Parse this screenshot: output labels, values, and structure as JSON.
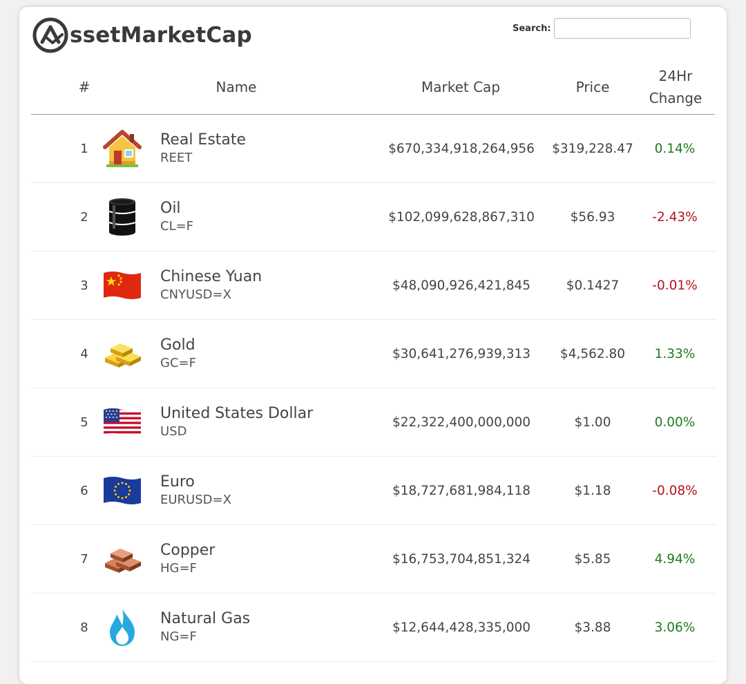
{
  "header": {
    "logo_text": "ssetMarketCap",
    "search_label": "Search:",
    "search_value": ""
  },
  "columns": {
    "rank": "#",
    "name": "Name",
    "market_cap": "Market Cap",
    "price": "Price",
    "change_line1": "24Hr",
    "change_line2": "Change"
  },
  "colors": {
    "positive": "#1f7a1f",
    "negative": "#b5121b"
  },
  "assets": [
    {
      "rank": "1",
      "name": "Real Estate",
      "symbol": "REET",
      "market_cap": "$670,334,918,264,956",
      "price": "$319,228.47",
      "change": "0.14%",
      "direction": "positive",
      "icon": "house-icon"
    },
    {
      "rank": "2",
      "name": "Oil",
      "symbol": "CL=F",
      "market_cap": "$102,099,628,867,310",
      "price": "$56.93",
      "change": "-2.43%",
      "direction": "negative",
      "icon": "oil-barrel-icon"
    },
    {
      "rank": "3",
      "name": "Chinese Yuan",
      "symbol": "CNYUSD=X",
      "market_cap": "$48,090,926,421,845",
      "price": "$0.1427",
      "change": "-0.01%",
      "direction": "negative",
      "icon": "china-flag-icon"
    },
    {
      "rank": "4",
      "name": "Gold",
      "symbol": "GC=F",
      "market_cap": "$30,641,276,939,313",
      "price": "$4,562.80",
      "change": "1.33%",
      "direction": "positive",
      "icon": "gold-bars-icon"
    },
    {
      "rank": "5",
      "name": "United States Dollar",
      "symbol": "USD",
      "market_cap": "$22,322,400,000,000",
      "price": "$1.00",
      "change": "0.00%",
      "direction": "positive",
      "icon": "us-flag-icon"
    },
    {
      "rank": "6",
      "name": "Euro",
      "symbol": "EURUSD=X",
      "market_cap": "$18,727,681,984,118",
      "price": "$1.18",
      "change": "-0.08%",
      "direction": "negative",
      "icon": "eu-flag-icon"
    },
    {
      "rank": "7",
      "name": "Copper",
      "symbol": "HG=F",
      "market_cap": "$16,753,704,851,324",
      "price": "$5.85",
      "change": "4.94%",
      "direction": "positive",
      "icon": "copper-bars-icon"
    },
    {
      "rank": "8",
      "name": "Natural Gas",
      "symbol": "NG=F",
      "market_cap": "$12,644,428,335,000",
      "price": "$3.88",
      "change": "3.06%",
      "direction": "positive",
      "icon": "flame-icon"
    }
  ]
}
